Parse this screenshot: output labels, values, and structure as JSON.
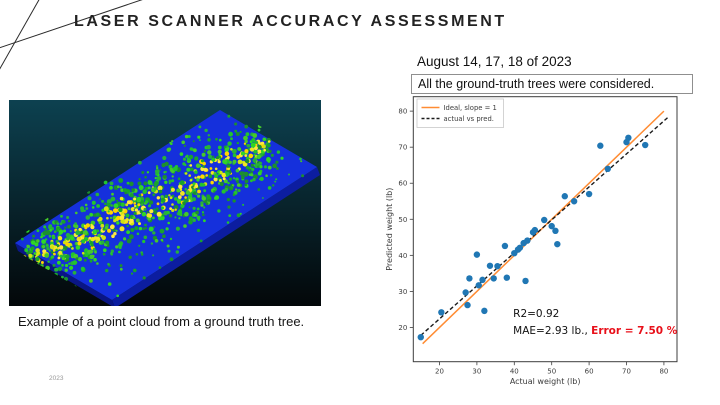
{
  "slide": {
    "title": "LASER SCANNER ACCURACY ASSESSMENT",
    "date_note": "August 14, 17, 18 of 2023",
    "boxed_note": "All the ground-truth trees were considered.",
    "point_cloud_caption": "Example of a point cloud from a ground truth tree.",
    "footer_year": "2023"
  },
  "point_cloud": {
    "bg_top": "#0d4150",
    "bg_bottom": "#030709",
    "plane_color": "#1530dc",
    "side_color": "#0c1da0",
    "side_color2": "#0a1685",
    "dot_greens": [
      "#22c32e",
      "#2fd626",
      "#45c92a",
      "#27b03b",
      "#19a32c",
      "#1c8f2e"
    ],
    "dot_yellows": [
      "#f2e523",
      "#ffd400",
      "#cfe312",
      "#ffea3c"
    ],
    "seed": 20230814
  },
  "chart_data": {
    "type": "scatter",
    "xlabel": "Actual weight (lb)",
    "ylabel": "Predicted weight (lb)",
    "xlim": [
      13,
      83.5
    ],
    "ylim": [
      10.5,
      84
    ],
    "xticks": [
      20,
      30,
      40,
      50,
      60,
      70,
      80
    ],
    "yticks": [
      20,
      30,
      40,
      50,
      60,
      70,
      80
    ],
    "point_color": "#2077b4",
    "points": [
      [
        15,
        17.3
      ],
      [
        20.5,
        24.2
      ],
      [
        27,
        29.7
      ],
      [
        27.5,
        26.2
      ],
      [
        28,
        33.6
      ],
      [
        30,
        40.2
      ],
      [
        30.5,
        31.7
      ],
      [
        31.5,
        33.2
      ],
      [
        32,
        24.6
      ],
      [
        33.5,
        37.1
      ],
      [
        34.5,
        33.6
      ],
      [
        35.5,
        37
      ],
      [
        37.5,
        42.6
      ],
      [
        38,
        33.8
      ],
      [
        40,
        40.6
      ],
      [
        41,
        41.6
      ],
      [
        41.5,
        42.1
      ],
      [
        42.5,
        43.4
      ],
      [
        43,
        32.9
      ],
      [
        43.5,
        44.1
      ],
      [
        45,
        46.4
      ],
      [
        45.5,
        47
      ],
      [
        48,
        49.8
      ],
      [
        50,
        48.1
      ],
      [
        51,
        46.8
      ],
      [
        51.5,
        43.1
      ],
      [
        53.5,
        56.4
      ],
      [
        56,
        55
      ],
      [
        60,
        57
      ],
      [
        63,
        70.4
      ],
      [
        65,
        64
      ],
      [
        70,
        71.4
      ],
      [
        70.5,
        72.6
      ],
      [
        75,
        70.6
      ]
    ],
    "lines": [
      {
        "name": "ideal",
        "label": "Ideal, slope = 1",
        "color": "#ff8c33",
        "x": [
          15.5,
          80
        ],
        "y": [
          15.5,
          80
        ],
        "width": 1.5
      },
      {
        "name": "fit",
        "label": "actual vs pred.",
        "color": "#1a1a1a",
        "x": [
          15,
          81
        ],
        "y": [
          17.8,
          78.2
        ],
        "width": 1.4,
        "dash": "4,2.5"
      }
    ],
    "legend": {
      "position": "upper left",
      "entries": [
        {
          "label": "Ideal, slope = 1",
          "color": "#ff8c33"
        },
        {
          "label": "actual vs pred.",
          "color": "#1a1a1a",
          "dash": "3,2"
        }
      ]
    },
    "annotations": [
      {
        "text": "R2=0.92",
        "x": 39.7,
        "y": 22.9,
        "color": "#111111"
      },
      {
        "text": "MAE=2.93 lb., ",
        "x": 39.7,
        "y": 18.2,
        "color": "#111111",
        "suffix": {
          "text": "Error = 7.50 %",
          "color": "#e8101a",
          "bold": true
        }
      }
    ]
  }
}
